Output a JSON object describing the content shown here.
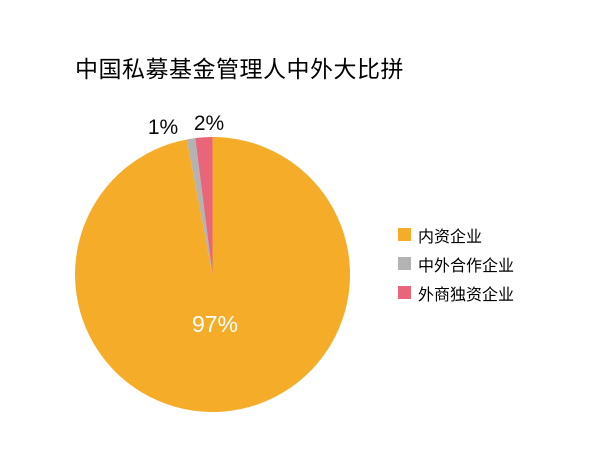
{
  "title": "中国私募基金管理人中外大比拼",
  "chart_data": {
    "type": "pie",
    "title": "中国私募基金管理人中外大比拼",
    "categories": [
      "内资企业",
      "中外合作企业",
      "外商独资企业"
    ],
    "values": [
      97,
      1,
      2
    ],
    "unit": "%",
    "slice_labels": [
      "97%",
      "1%",
      "2%"
    ],
    "colors": [
      "#F5AC29",
      "#B3B3B3",
      "#E9667A"
    ],
    "direction": "clockwise",
    "start_angle": "12-oclock",
    "legend_position": "right",
    "background": "#FFFFFF",
    "inside_label_color": "#FFFFFF",
    "outside_label_color": "#000000",
    "title_color": "#000000"
  },
  "legend": {
    "items": [
      {
        "label": "内资企业",
        "color": "#F5AC29"
      },
      {
        "label": "中外合作企业",
        "color": "#B3B3B3"
      },
      {
        "label": "外商独资企业",
        "color": "#E9667A"
      }
    ]
  }
}
